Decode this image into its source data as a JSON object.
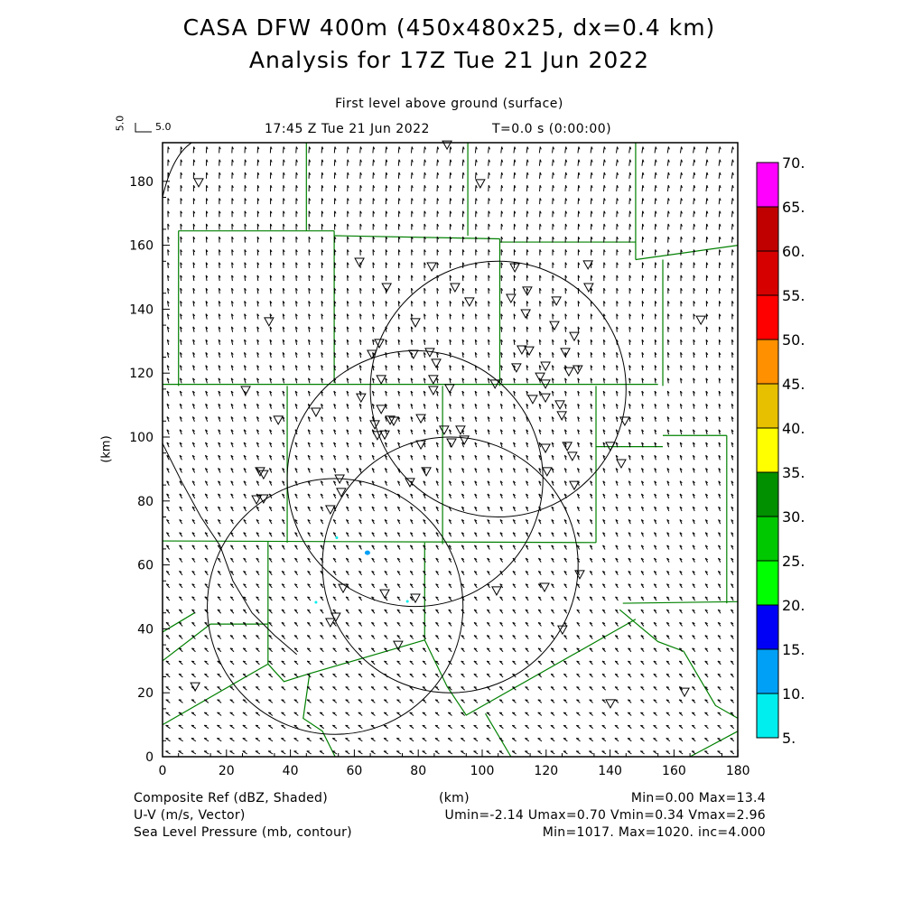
{
  "title_line1": "CASA DFW 400m (450x480x25, dx=0.4 km)",
  "title_line2": "Analysis for 17Z Tue 21 Jun 2022",
  "level_label": "First level above ground (surface)",
  "time_label": "17:45 Z Tue 21 Jun 2022",
  "t_label": "T=0.0 s (0:00:00)",
  "vector_scale": {
    "label_x": "5.0",
    "label_y": "5.0"
  },
  "footer": {
    "xlabel": "(km)",
    "field1_name": "Composite Ref (dBZ, Shaded)",
    "field1_stats": "Min=0.00 Max=13.4",
    "field2_name": "U-V (m/s, Vector)",
    "field2_stats": "Umin=-2.14 Umax=0.70 Vmin=0.34 Vmax=2.96",
    "field3_name": "Sea Level Pressure (mb, contour)",
    "field3_stats": "Min=1017. Max=1020. inc=4.000"
  },
  "chart_data": {
    "type": "scatter",
    "title": "CASA DFW 400m (450x480x25, dx=0.4 km)",
    "xlabel": "(km)",
    "ylabel": "(km)",
    "xlim": [
      0,
      180
    ],
    "ylim": [
      0,
      192
    ],
    "xticks": [
      "0",
      "20",
      "40",
      "60",
      "80",
      "100",
      "120",
      "140",
      "160",
      "180"
    ],
    "yticks": [
      "0",
      "20",
      "40",
      "60",
      "80",
      "100",
      "120",
      "140",
      "160",
      "180"
    ],
    "colorbar": {
      "levels": [
        "5.",
        "10.",
        "15.",
        "20.",
        "25.",
        "30.",
        "35.",
        "40.",
        "45.",
        "50.",
        "55.",
        "60.",
        "65.",
        "70."
      ],
      "colors": [
        "#00eeee",
        "#00a0f6",
        "#0000f6",
        "#00ff00",
        "#00c800",
        "#009000",
        "#ffff00",
        "#e7c000",
        "#ff9000",
        "#ff0000",
        "#d60000",
        "#c00000",
        "#ff00ff"
      ]
    },
    "radar_rings_km": [
      {
        "cx": 105,
        "cy": 115,
        "r": 40
      },
      {
        "cx": 79,
        "cy": 87,
        "r": 40
      },
      {
        "cx": 90,
        "cy": 60,
        "r": 40
      },
      {
        "cx": 54,
        "cy": 47,
        "r": 40
      }
    ],
    "echoes_dbz": [
      {
        "x": 54.5,
        "y": 68.5,
        "dbz": 8
      },
      {
        "x": 64.1,
        "y": 63.8,
        "dbz": 12
      },
      {
        "x": 76.6,
        "y": 48.6,
        "dbz": 8
      },
      {
        "x": 48,
        "y": 48.3,
        "dbz": 6
      }
    ],
    "stations": [
      [
        11.3,
        179.7
      ],
      [
        99.4,
        179.4
      ],
      [
        89.0,
        191.5
      ],
      [
        61.6,
        154.8
      ],
      [
        84.2,
        153.4
      ],
      [
        70.1,
        146.9
      ],
      [
        91.5,
        146.9
      ],
      [
        96.0,
        142.4
      ],
      [
        109.0,
        143.5
      ],
      [
        114.1,
        145.8
      ],
      [
        123.2,
        142.7
      ],
      [
        133.1,
        154.0
      ],
      [
        133.3,
        146.9
      ],
      [
        110.2,
        153.1
      ],
      [
        33.3,
        136.2
      ],
      [
        79.1,
        135.9
      ],
      [
        67.8,
        129.4
      ],
      [
        65.5,
        126.0
      ],
      [
        78.5,
        126.0
      ],
      [
        83.6,
        126.6
      ],
      [
        84.7,
        118.1
      ],
      [
        68.4,
        118.1
      ],
      [
        85.6,
        123.2
      ],
      [
        104.0,
        116.7
      ],
      [
        110.7,
        121.8
      ],
      [
        112.4,
        127.4
      ],
      [
        114.7,
        127.1
      ],
      [
        119.8,
        122.3
      ],
      [
        118.1,
        118.9
      ],
      [
        119.8,
        116.7
      ],
      [
        126.0,
        126.6
      ],
      [
        128.8,
        131.6
      ],
      [
        127.1,
        120.6
      ],
      [
        129.9,
        121.2
      ],
      [
        122.6,
        135.0
      ],
      [
        113.6,
        138.7
      ],
      [
        26.0,
        114.7
      ],
      [
        62.1,
        112.4
      ],
      [
        68.4,
        108.8
      ],
      [
        72.3,
        105.1
      ],
      [
        80.8,
        105.9
      ],
      [
        71.2,
        105.4
      ],
      [
        66.4,
        104.0
      ],
      [
        67.2,
        100.6
      ],
      [
        69.5,
        100.8
      ],
      [
        89.8,
        115.3
      ],
      [
        88.1,
        102.3
      ],
      [
        93.2,
        102.3
      ],
      [
        84.7,
        114.7
      ],
      [
        115.8,
        111.9
      ],
      [
        119.8,
        112.4
      ],
      [
        124.3,
        110.2
      ],
      [
        124.9,
        106.8
      ],
      [
        119.8,
        96.6
      ],
      [
        126.6,
        97.2
      ],
      [
        128.2,
        94.1
      ],
      [
        120.3,
        89.3
      ],
      [
        128.8,
        85.0
      ],
      [
        144.6,
        105.1
      ],
      [
        140.1,
        97.2
      ],
      [
        143.5,
        91.8
      ],
      [
        36.2,
        105.4
      ],
      [
        48.0,
        107.9
      ],
      [
        80.8,
        97.7
      ],
      [
        90.4,
        98.3
      ],
      [
        94.4,
        99.2
      ],
      [
        30.5,
        89.3
      ],
      [
        31.6,
        88.4
      ],
      [
        29.4,
        80.5
      ],
      [
        31.6,
        80.8
      ],
      [
        55.4,
        87.0
      ],
      [
        77.4,
        85.9
      ],
      [
        82.5,
        89.3
      ],
      [
        55.9,
        82.8
      ],
      [
        52.5,
        77.4
      ],
      [
        130.5,
        57.1
      ],
      [
        119.5,
        53.1
      ],
      [
        125.1,
        39.8
      ],
      [
        104.5,
        52.0
      ],
      [
        79.1,
        49.7
      ],
      [
        69.5,
        51.1
      ],
      [
        56.5,
        52.8
      ],
      [
        52.5,
        42.1
      ],
      [
        54.2,
        43.8
      ],
      [
        73.7,
        35.0
      ],
      [
        10.2,
        22.0
      ],
      [
        140.1,
        16.7
      ],
      [
        163.3,
        20.3
      ],
      [
        168.4,
        136.7
      ]
    ],
    "wind": {
      "umin": -2.14,
      "umax": 0.7,
      "vmin": 0.34,
      "vmax": 2.96
    },
    "slp_range_mb": [
      1017,
      1020
    ]
  }
}
